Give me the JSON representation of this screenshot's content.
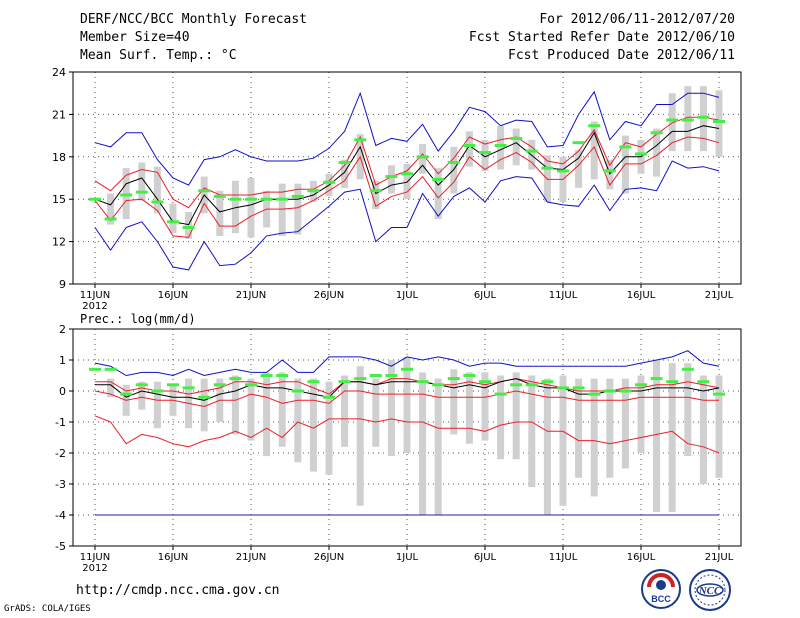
{
  "header": {
    "title": "DERF/NCC/BCC Monthly Forecast",
    "member_size": "Member Size=40",
    "variable": "Mean Surf. Temp.: °C",
    "forecast_period": "For 2012/06/11-2012/07/20",
    "started_refer": "Fcst Started Refer Date 2012/06/10",
    "produced": "Fcst Produced Date 2012/06/11"
  },
  "footer": {
    "url": "http://cmdp.ncc.cma.gov.cn",
    "credit": "GrADS: COLA/IGES",
    "logo_bcc": "BCC",
    "logo_ncc": "NCC"
  },
  "colors": {
    "ensemble_mean": "#000000",
    "spread": "#e8202a",
    "extremes": "#1010c8",
    "box": "#d0d0d0",
    "marker": "#44ee44",
    "reference_line": "#2020a0"
  },
  "chart_data": [
    {
      "type": "line",
      "panel": "temperature",
      "ylabel": "Mean Surf. Temp.: °C",
      "ylim": [
        9,
        24
      ],
      "yticks": [
        9,
        12,
        15,
        18,
        21,
        24
      ],
      "xlim": [
        0,
        40
      ],
      "xticks": [
        {
          "pos": 0,
          "label": "11JUN"
        },
        {
          "pos": 5,
          "label": "16JUN"
        },
        {
          "pos": 10,
          "label": "21JUN"
        },
        {
          "pos": 15,
          "label": "26JUN"
        },
        {
          "pos": 20,
          "label": "1JUL"
        },
        {
          "pos": 25,
          "label": "6JUL"
        },
        {
          "pos": 30,
          "label": "11JUL"
        },
        {
          "pos": 35,
          "label": "16JUL"
        },
        {
          "pos": 40,
          "label": "21JUL"
        }
      ],
      "year_label": "2012",
      "grid": true,
      "series": [
        {
          "name": "max",
          "role": "extremes",
          "values": [
            19.0,
            18.7,
            19.7,
            19.7,
            17.8,
            16.5,
            16.0,
            17.8,
            18.0,
            18.5,
            18.0,
            17.7,
            17.7,
            17.7,
            17.9,
            18.6,
            19.8,
            22.5,
            18.8,
            19.3,
            19.1,
            20.3,
            18.4,
            19.8,
            21.5,
            21.2,
            20.2,
            20.6,
            20.5,
            18.7,
            18.8,
            21.0,
            22.6,
            19.2,
            20.5,
            20.2,
            21.7,
            21.7,
            22.5,
            22.5,
            22.2
          ]
        },
        {
          "name": "upper",
          "role": "spread",
          "values": [
            16.3,
            15.6,
            16.7,
            17.1,
            16.9,
            15.0,
            14.4,
            15.8,
            15.3,
            15.3,
            15.3,
            15.5,
            15.5,
            15.7,
            15.7,
            16.3,
            17.4,
            19.4,
            16.0,
            16.6,
            17.0,
            18.2,
            16.8,
            17.9,
            19.4,
            18.9,
            19.2,
            19.4,
            18.7,
            17.7,
            17.5,
            18.4,
            19.9,
            17.4,
            19.0,
            18.7,
            19.6,
            20.4,
            20.8,
            20.8,
            20.6
          ]
        },
        {
          "name": "mean",
          "role": "ensemble_mean",
          "values": [
            15.0,
            14.6,
            16.1,
            16.5,
            15.0,
            13.4,
            13.2,
            15.3,
            14.1,
            14.4,
            14.6,
            15.0,
            15.0,
            15.0,
            15.3,
            16.0,
            16.9,
            18.7,
            15.4,
            16.0,
            16.2,
            17.4,
            16.0,
            17.1,
            18.8,
            18.0,
            18.5,
            19.0,
            18.1,
            17.2,
            17.1,
            17.9,
            19.7,
            16.8,
            18.0,
            18.0,
            18.8,
            19.8,
            19.8,
            20.2,
            20.0
          ]
        },
        {
          "name": "lower",
          "role": "spread",
          "values": [
            14.9,
            13.5,
            14.9,
            15.0,
            14.2,
            12.4,
            12.3,
            14.7,
            13.1,
            13.1,
            13.8,
            14.3,
            14.3,
            14.4,
            14.9,
            15.6,
            16.3,
            18.0,
            14.5,
            15.2,
            15.5,
            16.6,
            15.1,
            16.2,
            18.0,
            17.1,
            17.8,
            18.3,
            17.6,
            16.4,
            16.4,
            17.4,
            18.7,
            16.0,
            17.5,
            17.5,
            18.1,
            19.0,
            19.4,
            19.3,
            19.0
          ]
        },
        {
          "name": "min",
          "role": "extremes",
          "values": [
            13.0,
            11.4,
            13.0,
            13.4,
            12.0,
            10.2,
            10.0,
            12.0,
            10.3,
            10.4,
            11.2,
            12.4,
            12.6,
            12.7,
            13.6,
            14.5,
            15.5,
            15.7,
            12.0,
            13.0,
            13.0,
            15.4,
            13.8,
            15.2,
            15.8,
            14.8,
            16.3,
            16.6,
            16.5,
            14.8,
            14.6,
            14.5,
            16.0,
            14.2,
            15.7,
            15.8,
            15.6,
            17.7,
            17.2,
            17.3,
            17.0
          ]
        },
        {
          "name": "box_top",
          "role": "box",
          "values": [
            null,
            15.4,
            17.2,
            17.6,
            17.3,
            14.7,
            14.1,
            16.6,
            15.6,
            16.3,
            16.5,
            15.6,
            16.1,
            16.1,
            16.3,
            16.8,
            17.8,
            19.6,
            16.3,
            17.4,
            17.5,
            18.9,
            17.2,
            18.7,
            19.8,
            19.2,
            20.2,
            20.0,
            19.2,
            18.1,
            18.0,
            18.5,
            20.5,
            17.8,
            19.5,
            19.2,
            20.0,
            22.5,
            23.0,
            23.0,
            22.7
          ]
        },
        {
          "name": "box_bottom",
          "role": "box",
          "values": [
            null,
            13.2,
            13.6,
            14.9,
            14.0,
            12.6,
            12.2,
            14.0,
            12.4,
            12.6,
            12.3,
            13.0,
            12.4,
            12.5,
            14.8,
            15.2,
            15.8,
            16.4,
            14.3,
            15.4,
            15.0,
            16.8,
            13.6,
            15.4,
            17.3,
            17.0,
            17.1,
            17.4,
            17.1,
            14.8,
            14.8,
            15.8,
            16.4,
            15.7,
            15.4,
            16.8,
            16.6,
            18.4,
            18.4,
            18.4,
            18.0
          ]
        },
        {
          "name": "marker",
          "role": "marker",
          "values": [
            15.0,
            13.6,
            15.3,
            15.5,
            14.8,
            13.4,
            13.0,
            15.6,
            15.2,
            15.0,
            15.0,
            15.0,
            15.0,
            15.2,
            15.6,
            16.2,
            17.6,
            19.2,
            15.6,
            16.6,
            16.8,
            18.0,
            16.4,
            17.6,
            18.8,
            18.3,
            18.8,
            19.3,
            18.4,
            17.2,
            17.0,
            19.0,
            20.2,
            17.0,
            18.7,
            18.2,
            19.7,
            20.6,
            20.6,
            20.8,
            20.5
          ]
        }
      ]
    },
    {
      "type": "line",
      "panel": "precipitation",
      "ylabel": "Prec.: log(mm/d)",
      "ylim": [
        -5,
        2
      ],
      "yticks": [
        -5,
        -4,
        -3,
        -2,
        -1,
        0,
        1,
        2
      ],
      "reference_value": -4,
      "xlim": [
        0,
        40
      ],
      "xticks": [
        {
          "pos": 0,
          "label": "11JUN"
        },
        {
          "pos": 5,
          "label": "16JUN"
        },
        {
          "pos": 10,
          "label": "21JUN"
        },
        {
          "pos": 15,
          "label": "26JUN"
        },
        {
          "pos": 20,
          "label": "1JUL"
        },
        {
          "pos": 25,
          "label": "6JUL"
        },
        {
          "pos": 30,
          "label": "11JUL"
        },
        {
          "pos": 35,
          "label": "16JUL"
        },
        {
          "pos": 40,
          "label": "21JUL"
        }
      ],
      "year_label": "2012",
      "grid": true,
      "series": [
        {
          "name": "max",
          "role": "extremes",
          "values": [
            0.9,
            0.8,
            0.5,
            0.6,
            0.6,
            0.5,
            0.7,
            0.5,
            0.6,
            0.7,
            0.6,
            0.6,
            1.0,
            0.6,
            0.6,
            1.1,
            1.1,
            1.1,
            1.0,
            0.8,
            1.1,
            1.0,
            1.1,
            1.0,
            0.8,
            0.9,
            0.9,
            0.8,
            0.8,
            0.8,
            0.8,
            0.8,
            0.8,
            0.8,
            0.8,
            0.9,
            1.0,
            1.1,
            1.3,
            0.9,
            0.8
          ]
        },
        {
          "name": "upper",
          "role": "spread",
          "values": [
            0.3,
            0.3,
            0.0,
            0.1,
            0.0,
            0.0,
            -0.1,
            0.0,
            0.1,
            0.3,
            0.3,
            0.2,
            0.3,
            0.3,
            0.1,
            -0.1,
            0.3,
            0.3,
            0.2,
            0.4,
            0.4,
            0.3,
            0.2,
            0.2,
            0.3,
            0.2,
            0.3,
            0.4,
            0.3,
            0.2,
            0.1,
            0.0,
            0.0,
            0.0,
            0.1,
            0.1,
            0.2,
            0.2,
            0.3,
            0.2,
            0.1
          ]
        },
        {
          "name": "mean",
          "role": "ensemble_mean",
          "values": [
            0.2,
            0.2,
            -0.2,
            0.0,
            -0.1,
            -0.2,
            -0.2,
            -0.3,
            -0.1,
            0.0,
            0.2,
            0.1,
            0.1,
            0.0,
            -0.1,
            -0.2,
            0.3,
            0.3,
            0.2,
            0.3,
            0.3,
            0.3,
            0.2,
            0.1,
            0.2,
            0.1,
            0.3,
            0.4,
            0.2,
            0.1,
            0.1,
            -0.1,
            -0.1,
            0.0,
            0.0,
            0.0,
            0.1,
            0.1,
            0.1,
            0.0,
            0.1
          ]
        },
        {
          "name": "lower",
          "role": "spread",
          "values": [
            0.0,
            -0.1,
            -0.3,
            -0.2,
            -0.3,
            -0.3,
            -0.4,
            -0.5,
            -0.3,
            -0.3,
            -0.1,
            -0.2,
            -0.4,
            -0.3,
            -0.3,
            -0.4,
            0.0,
            0.0,
            -0.1,
            -0.1,
            -0.1,
            -0.1,
            -0.2,
            -0.2,
            -0.2,
            -0.2,
            -0.1,
            0.0,
            -0.1,
            -0.2,
            -0.2,
            -0.3,
            -0.3,
            -0.3,
            -0.3,
            -0.2,
            -0.2,
            -0.2,
            -0.2,
            -0.3,
            -0.3
          ]
        },
        {
          "name": "min",
          "role": "spread",
          "values": [
            -0.8,
            -1.0,
            -1.7,
            -1.4,
            -1.5,
            -1.7,
            -1.8,
            -1.6,
            -1.5,
            -1.3,
            -1.5,
            -1.2,
            -1.5,
            -1.0,
            -1.2,
            -0.9,
            -0.9,
            -0.9,
            -1.0,
            -0.9,
            -1.0,
            -1.0,
            -1.2,
            -1.2,
            -1.2,
            -1.3,
            -1.1,
            -1.0,
            -1.0,
            -1.3,
            -1.3,
            -1.6,
            -1.6,
            -1.7,
            -1.6,
            -1.5,
            -1.4,
            -1.3,
            -1.7,
            -1.8,
            -2.0
          ]
        },
        {
          "name": "reference",
          "role": "reference_line",
          "values": [
            -4,
            -4,
            -4,
            -4,
            -4,
            -4,
            -4,
            -4,
            -4,
            -4,
            -4,
            -4,
            -4,
            -4,
            -4,
            -4,
            -4,
            -4,
            -4,
            -4,
            -4,
            -4,
            -4,
            -4,
            -4,
            -4,
            -4,
            -4,
            -4,
            -4,
            -4,
            -4,
            -4,
            -4,
            -4,
            -4,
            -4,
            -4,
            -4,
            -4,
            -4
          ]
        },
        {
          "name": "box_top",
          "role": "box",
          "values": [
            null,
            0.4,
            0.2,
            0.3,
            0.3,
            0.2,
            0.4,
            0.4,
            0.4,
            0.5,
            0.4,
            0.6,
            0.6,
            0.4,
            0.4,
            0.3,
            0.5,
            0.8,
            0.4,
            1.0,
            1.1,
            0.6,
            0.4,
            0.7,
            0.6,
            0.6,
            0.5,
            0.6,
            0.5,
            0.4,
            0.5,
            0.4,
            0.4,
            0.4,
            0.4,
            0.5,
            1.0,
            0.9,
            0.9,
            0.5,
            0.5
          ]
        },
        {
          "name": "box_bottom",
          "role": "box",
          "values": [
            null,
            -0.2,
            -0.8,
            -0.6,
            -1.2,
            -0.8,
            -1.2,
            -1.3,
            -1.0,
            -1.4,
            -1.6,
            -2.1,
            -1.8,
            -2.3,
            -2.6,
            -2.7,
            -1.8,
            -3.7,
            -1.8,
            -2.1,
            -2.0,
            -4.0,
            -4.0,
            -1.4,
            -1.7,
            -1.6,
            -2.2,
            -2.2,
            -3.1,
            -4.0,
            -3.7,
            -2.8,
            -3.4,
            -2.8,
            -2.5,
            -2.0,
            -3.9,
            -3.9,
            -2.1,
            -3.0,
            -2.8
          ]
        },
        {
          "name": "marker",
          "role": "marker",
          "values": [
            0.7,
            0.7,
            -0.1,
            0.2,
            0.0,
            0.2,
            0.1,
            -0.2,
            0.2,
            0.4,
            0.2,
            0.5,
            0.5,
            0.0,
            0.3,
            -0.2,
            0.3,
            0.4,
            0.5,
            0.5,
            0.7,
            0.3,
            0.2,
            0.4,
            0.5,
            0.3,
            -0.1,
            0.2,
            0.2,
            0.3,
            0.1,
            0.1,
            -0.1,
            0.0,
            0.0,
            0.2,
            0.4,
            0.3,
            0.7,
            0.3,
            -0.1
          ]
        }
      ]
    }
  ]
}
